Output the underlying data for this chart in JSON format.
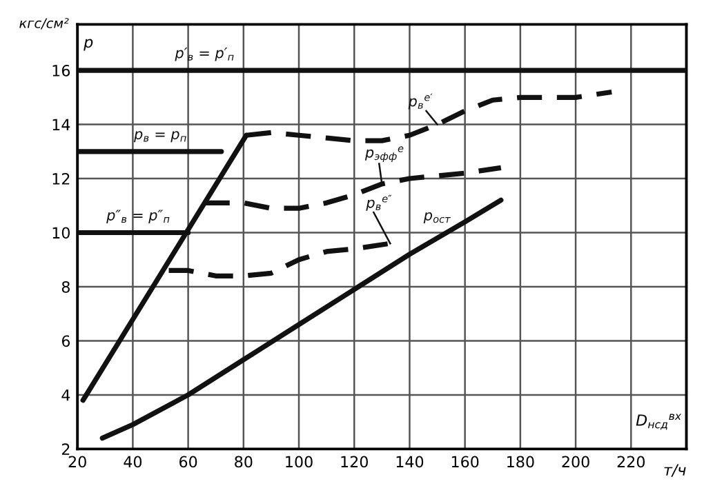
{
  "chart_data": {
    "type": "line",
    "ylabel": "кгс/см²",
    "xlabel": "т/ч",
    "xlim": [
      20,
      240
    ],
    "ylim": [
      2,
      17.7
    ],
    "xticks": [
      20,
      40,
      60,
      80,
      100,
      120,
      140,
      160,
      180,
      200,
      220
    ],
    "yticks": [
      2,
      4,
      6,
      8,
      10,
      12,
      14,
      16
    ],
    "grid": true,
    "series": [
      {
        "name": "p′$_{в}$ = p′$_{п}$",
        "color": "#111111",
        "line_style": "solid",
        "x": [
          20,
          240
        ],
        "values": [
          16,
          16
        ]
      },
      {
        "name": "p$_{в}$ = p$_{п}$",
        "color": "#111111",
        "line_style": "solid",
        "x": [
          20,
          72
        ],
        "values": [
          13,
          13
        ]
      },
      {
        "name": "p″$_{в}$ = p″$_{п}$",
        "color": "#111111",
        "line_style": "solid",
        "x": [
          20,
          60
        ],
        "values": [
          10,
          10
        ]
      },
      {
        "color": "#111111",
        "line_style": "solid",
        "x": [
          22,
          81
        ],
        "values": [
          3.8,
          13.6
        ]
      },
      {
        "name": "p$_{в}$$^{е′}$",
        "color": "#111111",
        "line_style": "dashed",
        "x": [
          81,
          90,
          100,
          110,
          120,
          130,
          140,
          150,
          160,
          170,
          180,
          190,
          200,
          213
        ],
        "values": [
          13.6,
          13.7,
          13.6,
          13.5,
          13.4,
          13.4,
          13.6,
          14.0,
          14.5,
          14.9,
          15.0,
          15.0,
          15.0,
          15.2
        ]
      },
      {
        "name": "p$_{эфф}$$^{е}$",
        "color": "#111111",
        "line_style": "dashed",
        "x": [
          66,
          70,
          80,
          90,
          100,
          110,
          120,
          130,
          140,
          150,
          160,
          173
        ],
        "values": [
          11.1,
          11.1,
          11.1,
          10.9,
          10.9,
          11.1,
          11.4,
          11.8,
          12.0,
          12.1,
          12.2,
          12.4
        ]
      },
      {
        "name": "p$_{в}$$^{е″}$",
        "color": "#111111",
        "line_style": "dashed",
        "x": [
          53,
          60,
          70,
          80,
          90,
          100,
          110,
          120,
          133
        ],
        "values": [
          8.6,
          8.6,
          8.4,
          8.4,
          8.5,
          9.0,
          9.3,
          9.4,
          9.6
        ]
      },
      {
        "name": "p$_{ост}$",
        "color": "#111111",
        "line_style": "solid",
        "x": [
          29,
          40,
          60,
          80,
          100,
          120,
          140,
          160,
          173
        ],
        "values": [
          2.4,
          2.9,
          4.0,
          5.3,
          6.6,
          7.9,
          9.2,
          10.4,
          11.2
        ]
      }
    ],
    "annotations": [
      "p",
      "D$_{нсд}$$^{вх}$"
    ]
  }
}
